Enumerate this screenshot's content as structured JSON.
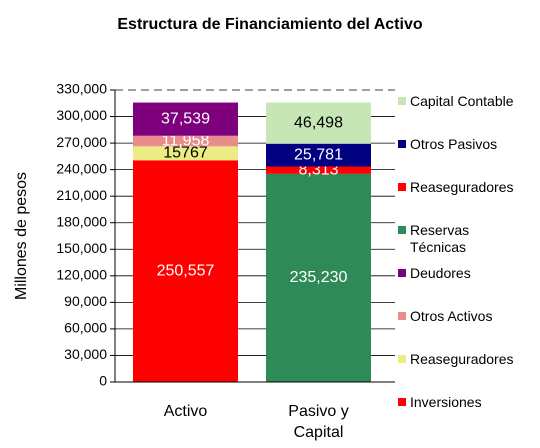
{
  "chart_data": {
    "type": "bar",
    "stacked": true,
    "title": "Estructura de Financiamiento del Activo",
    "y_label": "Millones de pesos",
    "categories": [
      "Activo",
      "Pasivo y Capital"
    ],
    "ylim": [
      0,
      330000
    ],
    "yticks": [
      {
        "value": 0,
        "label": "0"
      },
      {
        "value": 30000,
        "label": "30,000"
      },
      {
        "value": 60000,
        "label": "60,000"
      },
      {
        "value": 90000,
        "label": "90,000"
      },
      {
        "value": 120000,
        "label": "120,000"
      },
      {
        "value": 150000,
        "label": "150,000"
      },
      {
        "value": 180000,
        "label": "180,000"
      },
      {
        "value": 210000,
        "label": "210,000"
      },
      {
        "value": 240000,
        "label": "240,000"
      },
      {
        "value": 270000,
        "label": "270,000"
      },
      {
        "value": 300000,
        "label": "300,000"
      },
      {
        "value": 330000,
        "label": "330,000"
      }
    ],
    "grid": true,
    "legend": "right",
    "series": [
      {
        "name": "Inversiones",
        "color": "#ff0000",
        "label_color": "#ffffff",
        "values": [
          250557,
          null
        ],
        "value_labels": [
          "250,557",
          null
        ]
      },
      {
        "name": "Reaseguradores",
        "color": "#ecec84",
        "label_color": "#000000",
        "values": [
          15767,
          null
        ],
        "value_labels": [
          "15767",
          null
        ]
      },
      {
        "name": "Otros Activos",
        "color": "#e98c8c",
        "label_color": "#ffffff",
        "values": [
          11958,
          null
        ],
        "value_labels": [
          "11,958",
          null
        ]
      },
      {
        "name": "Deudores",
        "color": "#7f007f",
        "label_color": "#ffffff",
        "values": [
          37539,
          null
        ],
        "value_labels": [
          "37,539",
          null
        ]
      },
      {
        "name": "Reservas Técnicas",
        "color": "#2e8b57",
        "label_color": "#ffffff",
        "values": [
          null,
          235230
        ],
        "value_labels": [
          null,
          "235,230"
        ]
      },
      {
        "name": "Reaseguradores",
        "color": "#ff0000",
        "label_color": "#ffffff",
        "values": [
          null,
          8313
        ],
        "value_labels": [
          null,
          "8,313"
        ]
      },
      {
        "name": "Otros Pasivos",
        "color": "#000080",
        "label_color": "#ffffff",
        "values": [
          null,
          25781
        ],
        "value_labels": [
          null,
          "25,781"
        ]
      },
      {
        "name": "Capital Contable",
        "color": "#c6e6b6",
        "label_color": "#000000",
        "values": [
          null,
          46498
        ],
        "value_labels": [
          null,
          "46,498"
        ]
      }
    ]
  }
}
